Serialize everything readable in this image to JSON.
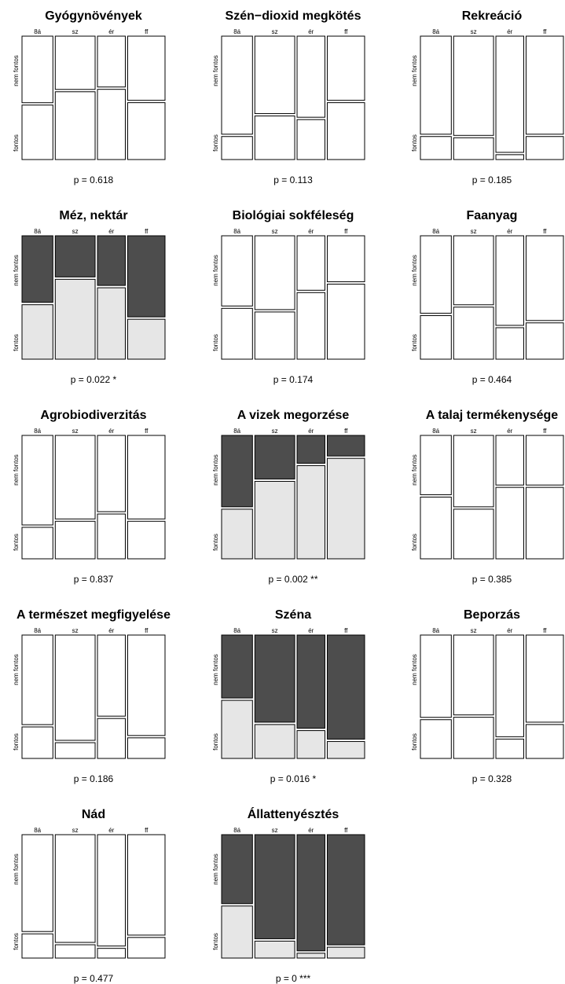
{
  "chart_data": {
    "type": "mosaic",
    "column_labels": [
      "8á",
      "sz",
      "ér",
      "ff"
    ],
    "row_labels": [
      "nem fontos",
      "fontos"
    ],
    "colors": {
      "nem_fontos_sig": "#4d4d4d",
      "fontos_sig": "#e6e6e6",
      "nonsig": "#ffffff",
      "stroke": "#000000"
    },
    "column_widths": [
      0.172,
      0.222,
      0.155,
      0.208
    ],
    "panels": [
      {
        "title": "Gyógynövények",
        "p": "p = 0.618",
        "fontos_share": [
          0.45,
          0.56,
          0.58,
          0.47
        ],
        "significant": false
      },
      {
        "title": "Szén−dioxid megkötés",
        "p": "p = 0.113",
        "fontos_share": [
          0.19,
          0.36,
          0.33,
          0.47
        ],
        "significant": false
      },
      {
        "title": "Rekreáció",
        "p": "p = 0.185",
        "fontos_share": [
          0.19,
          0.18,
          0.04,
          0.19
        ],
        "significant": false
      },
      {
        "title": "Méz, nektár",
        "p": "p = 0.022 *",
        "fontos_share": [
          0.45,
          0.66,
          0.59,
          0.33
        ],
        "significant": true
      },
      {
        "title": "Biológiai sokféleség",
        "p": "p = 0.174",
        "fontos_share": [
          0.42,
          0.39,
          0.55,
          0.62
        ],
        "significant": false
      },
      {
        "title": "Faanyag",
        "p": "p = 0.464",
        "fontos_share": [
          0.36,
          0.43,
          0.26,
          0.3
        ],
        "significant": false
      },
      {
        "title": "Agrobiodiverzitás",
        "p": "p = 0.837",
        "fontos_share": [
          0.26,
          0.31,
          0.37,
          0.31
        ],
        "significant": false
      },
      {
        "title": "A vizek megorzése",
        "p": "p = 0.002 **",
        "fontos_share": [
          0.41,
          0.64,
          0.77,
          0.83
        ],
        "significant": true
      },
      {
        "title": "A talaj termékenysége",
        "p": "p = 0.385",
        "fontos_share": [
          0.51,
          0.41,
          0.59,
          0.59
        ],
        "significant": false
      },
      {
        "title": "A természet megfigyelése",
        "p": "p = 0.186",
        "fontos_share": [
          0.26,
          0.13,
          0.33,
          0.17
        ],
        "significant": false
      },
      {
        "title": "Széna",
        "p": "p = 0.016 *",
        "fontos_share": [
          0.48,
          0.28,
          0.23,
          0.14
        ],
        "significant": true
      },
      {
        "title": "Beporzás",
        "p": "p = 0.328",
        "fontos_share": [
          0.32,
          0.34,
          0.16,
          0.28
        ],
        "significant": false
      },
      {
        "title": "Nád",
        "p": "p = 0.477",
        "fontos_share": [
          0.2,
          0.11,
          0.08,
          0.17
        ],
        "significant": false
      },
      {
        "title": "Állattenyésztés",
        "p": "p = 0 ***",
        "fontos_share": [
          0.43,
          0.14,
          0.04,
          0.09
        ],
        "significant": true
      }
    ]
  }
}
